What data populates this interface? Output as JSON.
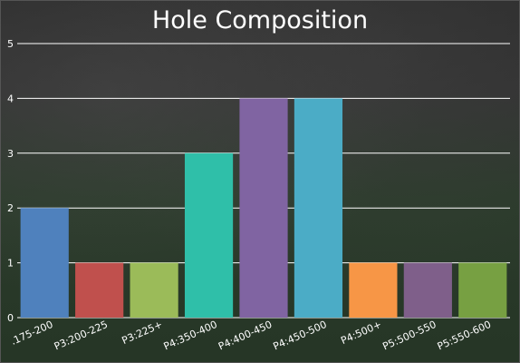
{
  "chart_data": {
    "type": "bar",
    "title": "Hole Composition",
    "categories": [
      ".175-200",
      "P3:200-225",
      "P3:225+",
      "P4:350-400",
      "P4:400-450",
      "P4:450-500",
      "P4:500+",
      "P5:500-550",
      "P5:550-600"
    ],
    "values": [
      2,
      1,
      1,
      3,
      4,
      4,
      1,
      1,
      1
    ],
    "colors": [
      "#4f81bd",
      "#c0504d",
      "#9bbb59",
      "#2fbfa9",
      "#8064a2",
      "#4bacc6",
      "#f79646",
      "#7f5f8a",
      "#77a042"
    ],
    "ylim": [
      0,
      5
    ],
    "yticks": [
      0,
      1,
      2,
      3,
      4,
      5
    ],
    "grid": true,
    "xlabel": "",
    "ylabel": ""
  }
}
